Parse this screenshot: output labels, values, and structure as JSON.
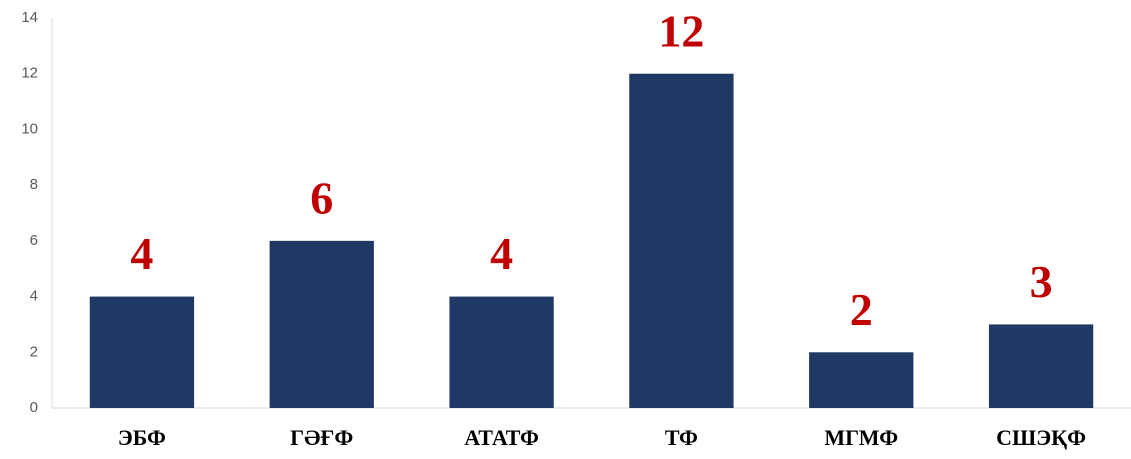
{
  "chart_data": {
    "type": "bar",
    "categories": [
      "ЭБФ",
      "ГӘҒФ",
      "АТАТФ",
      "ТФ",
      "МГМФ",
      "СШЭҚФ"
    ],
    "values": [
      4,
      6,
      4,
      12,
      2,
      3
    ],
    "color": "#203864",
    "value_label_color": "#c00000",
    "ylim": [
      0,
      14
    ],
    "yticks": [
      0,
      2,
      4,
      6,
      8,
      10,
      12,
      14
    ],
    "grid": false
  }
}
